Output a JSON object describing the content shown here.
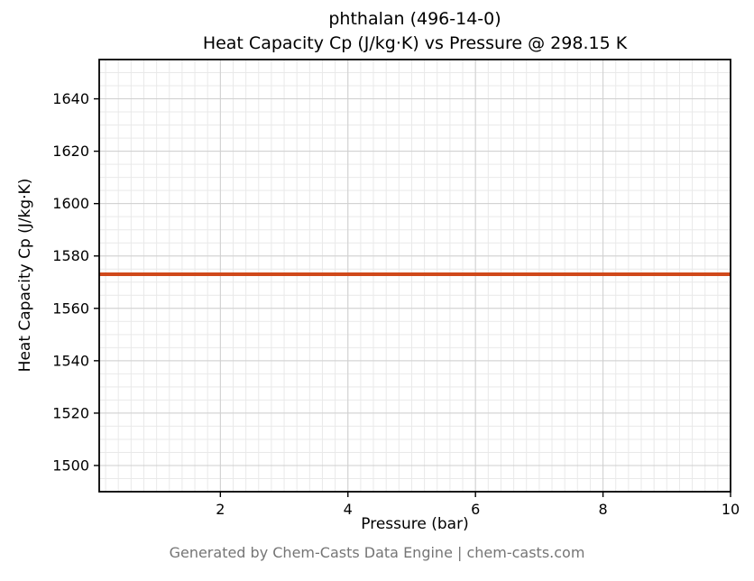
{
  "title": {
    "line1": "phthalan (496-14-0)",
    "line2": "Heat Capacity Cp (J/kg·K) vs Pressure @ 298.15 K"
  },
  "footer": "Generated by Chem-Casts Data Engine | chem-casts.com",
  "chart_data": {
    "type": "line",
    "title": "phthalan (496-14-0)\nHeat Capacity Cp (J/kg·K) vs Pressure @ 298.15 K",
    "xlabel": "Pressure (bar)",
    "ylabel": "Heat Capacity Cp (J/kg·K)",
    "xlim": [
      0.1,
      10
    ],
    "ylim": [
      1490,
      1655
    ],
    "xticks": [
      2,
      4,
      6,
      8,
      10
    ],
    "yticks": [
      1500,
      1520,
      1540,
      1560,
      1580,
      1600,
      1620,
      1640
    ],
    "x_minor_step": 0.2,
    "y_minor_step": 5,
    "grid": "both",
    "legend_position": "none",
    "series": [
      {
        "name": "Heat Capacity Cp",
        "color": "#d0491b",
        "x": [
          0.1,
          10
        ],
        "values": [
          1573,
          1573
        ]
      }
    ]
  },
  "style_colors": {
    "major_grid": "#cfcfcf",
    "minor_grid": "#e9e9e9",
    "spine": "#000000",
    "line": "#d0491b"
  }
}
